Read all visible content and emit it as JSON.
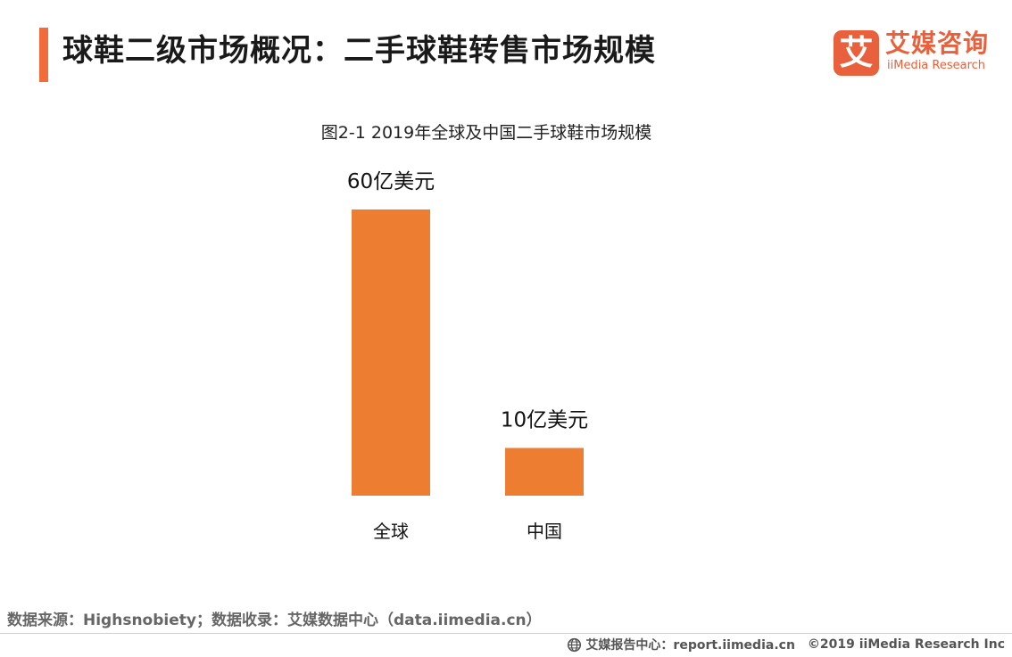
{
  "header": {
    "title": "球鞋二级市场概况：二手球鞋转售市场规模",
    "accent_color": "#f26b3a"
  },
  "logo": {
    "mark_glyph": "艾",
    "cn_text": "艾媒咨询",
    "en_text": "iiMedia Research",
    "color": "#e8603c"
  },
  "chart_data": {
    "type": "bar",
    "title": "图2-1 2019年全球及中国二手球鞋市场规模",
    "categories": [
      "全球",
      "中国"
    ],
    "values": [
      60,
      10
    ],
    "unit": "亿美元",
    "data_labels": [
      "60亿美元",
      "10亿美元"
    ],
    "bar_color": "#ed7d31",
    "xlabel": "",
    "ylabel": "",
    "grid": false,
    "axis_visible": false
  },
  "footer": {
    "source_text": "数据来源：Highsnobiety；数据收录：艾媒数据中心（data.iimedia.cn）",
    "report_center": "艾媒报告中心：report.iimedia.cn",
    "copyright": "©2019  iiMedia Research  Inc"
  }
}
